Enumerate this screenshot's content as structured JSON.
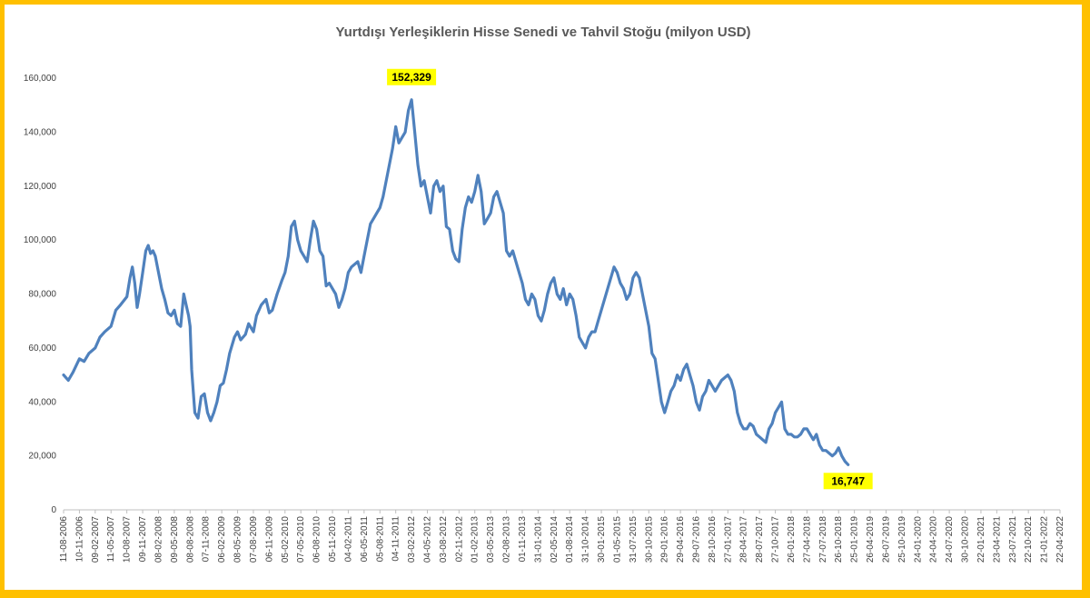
{
  "chart_data": {
    "type": "line",
    "title": "Yurtdışı Yerleşiklerin Hisse Senedi ve Tahvil Stoğu (milyon USD)",
    "xlabel": "",
    "ylabel": "",
    "ylim": [
      0,
      160000
    ],
    "y_ticks": [
      0,
      20000,
      40000,
      60000,
      80000,
      100000,
      120000,
      140000,
      160000
    ],
    "y_tick_labels": [
      "0",
      "20,000",
      "40,000",
      "60,000",
      "80,000",
      "100,000",
      "120,000",
      "140,000",
      "160,000"
    ],
    "grid": false,
    "legend": "none",
    "line_color": "#4f81bd",
    "x_tick_labels": [
      "11-08-2006",
      "10-11-2006",
      "09-02-2007",
      "11-05-2007",
      "10-08-2007",
      "09-11-2007",
      "08-02-2008",
      "09-05-2008",
      "08-08-2008",
      "07-11-2008",
      "06-02-2009",
      "08-05-2009",
      "07-08-2009",
      "06-11-2009",
      "05-02-2010",
      "07-05-2010",
      "06-08-2010",
      "05-11-2010",
      "04-02-2011",
      "06-05-2011",
      "05-08-2011",
      "04-11-2011",
      "03-02-2012",
      "04-05-2012",
      "03-08-2012",
      "02-11-2012",
      "01-02-2013",
      "03-05-2013",
      "02-08-2013",
      "01-11-2013",
      "31-01-2014",
      "02-05-2014",
      "01-08-2014",
      "31-10-2014",
      "30-01-2015",
      "01-05-2015",
      "31-07-2015",
      "30-10-2015",
      "29-01-2016",
      "29-04-2016",
      "29-07-2016",
      "28-10-2016",
      "27-01-2017",
      "28-04-2017",
      "28-07-2017",
      "27-10-2017",
      "26-01-2018",
      "27-04-2018",
      "27-07-2018",
      "26-10-2018",
      "25-01-2019",
      "26-04-2019",
      "26-07-2019",
      "25-10-2019",
      "24-01-2020",
      "24-04-2020",
      "24-07-2020",
      "30-10-2020",
      "22-01-2021",
      "23-04-2021",
      "23-07-2021",
      "22-10-2021",
      "21-01-2022",
      "22-04-2022"
    ],
    "series": [
      {
        "points": [
          [
            0,
            50000
          ],
          [
            0.3,
            48000
          ],
          [
            0.6,
            51000
          ],
          [
            1.0,
            56000
          ],
          [
            1.3,
            55000
          ],
          [
            1.6,
            58000
          ],
          [
            2.0,
            60000
          ],
          [
            2.3,
            64000
          ],
          [
            2.6,
            66000
          ],
          [
            3.0,
            68000
          ],
          [
            3.3,
            74000
          ],
          [
            3.6,
            76000
          ],
          [
            4.0,
            79000
          ],
          [
            4.2,
            86000
          ],
          [
            4.35,
            90000
          ],
          [
            4.5,
            84000
          ],
          [
            4.65,
            75000
          ],
          [
            4.8,
            80000
          ],
          [
            5.0,
            88000
          ],
          [
            5.2,
            96000
          ],
          [
            5.35,
            98000
          ],
          [
            5.5,
            95000
          ],
          [
            5.65,
            96000
          ],
          [
            5.8,
            94000
          ],
          [
            6.0,
            88000
          ],
          [
            6.2,
            82000
          ],
          [
            6.4,
            78000
          ],
          [
            6.6,
            73000
          ],
          [
            6.8,
            72000
          ],
          [
            7.0,
            74000
          ],
          [
            7.2,
            69000
          ],
          [
            7.4,
            68000
          ],
          [
            7.6,
            80000
          ],
          [
            7.75,
            76000
          ],
          [
            7.9,
            72000
          ],
          [
            8.0,
            68000
          ],
          [
            8.1,
            52000
          ],
          [
            8.3,
            36000
          ],
          [
            8.5,
            34000
          ],
          [
            8.7,
            42000
          ],
          [
            8.9,
            43000
          ],
          [
            9.1,
            36000
          ],
          [
            9.3,
            33000
          ],
          [
            9.5,
            36000
          ],
          [
            9.7,
            40000
          ],
          [
            9.9,
            46000
          ],
          [
            10.1,
            47000
          ],
          [
            10.3,
            52000
          ],
          [
            10.5,
            58000
          ],
          [
            10.8,
            64000
          ],
          [
            11.0,
            66000
          ],
          [
            11.2,
            63000
          ],
          [
            11.5,
            65000
          ],
          [
            11.7,
            69000
          ],
          [
            12.0,
            66000
          ],
          [
            12.2,
            72000
          ],
          [
            12.5,
            76000
          ],
          [
            12.8,
            78000
          ],
          [
            13.0,
            73000
          ],
          [
            13.2,
            74000
          ],
          [
            13.5,
            80000
          ],
          [
            13.8,
            85000
          ],
          [
            14.0,
            88000
          ],
          [
            14.2,
            94000
          ],
          [
            14.4,
            105000
          ],
          [
            14.6,
            107000
          ],
          [
            14.8,
            100000
          ],
          [
            15.0,
            96000
          ],
          [
            15.2,
            94000
          ],
          [
            15.4,
            92000
          ],
          [
            15.6,
            100000
          ],
          [
            15.8,
            107000
          ],
          [
            16.0,
            104000
          ],
          [
            16.2,
            96000
          ],
          [
            16.4,
            94000
          ],
          [
            16.6,
            83000
          ],
          [
            16.8,
            84000
          ],
          [
            17.0,
            82000
          ],
          [
            17.2,
            80000
          ],
          [
            17.4,
            75000
          ],
          [
            17.6,
            78000
          ],
          [
            17.8,
            82000
          ],
          [
            18.0,
            88000
          ],
          [
            18.2,
            90000
          ],
          [
            18.4,
            91000
          ],
          [
            18.6,
            92000
          ],
          [
            18.8,
            88000
          ],
          [
            19.0,
            94000
          ],
          [
            19.2,
            100000
          ],
          [
            19.4,
            106000
          ],
          [
            19.6,
            108000
          ],
          [
            19.8,
            110000
          ],
          [
            20.0,
            112000
          ],
          [
            20.2,
            116000
          ],
          [
            20.4,
            122000
          ],
          [
            20.6,
            128000
          ],
          [
            20.8,
            134000
          ],
          [
            21.0,
            142000
          ],
          [
            21.2,
            136000
          ],
          [
            21.4,
            138000
          ],
          [
            21.6,
            140000
          ],
          [
            21.8,
            148000
          ],
          [
            22.0,
            152000
          ],
          [
            22.2,
            140000
          ],
          [
            22.4,
            128000
          ],
          [
            22.6,
            120000
          ],
          [
            22.8,
            122000
          ],
          [
            23.0,
            116000
          ],
          [
            23.2,
            110000
          ],
          [
            23.4,
            120000
          ],
          [
            23.6,
            122000
          ],
          [
            23.8,
            118000
          ],
          [
            24.0,
            120000
          ],
          [
            24.2,
            105000
          ],
          [
            24.4,
            104000
          ],
          [
            24.6,
            96000
          ],
          [
            24.8,
            93000
          ],
          [
            25.0,
            92000
          ],
          [
            25.2,
            104000
          ],
          [
            25.4,
            112000
          ],
          [
            25.6,
            116000
          ],
          [
            25.8,
            114000
          ],
          [
            26.0,
            118000
          ],
          [
            26.2,
            124000
          ],
          [
            26.4,
            118000
          ],
          [
            26.6,
            106000
          ],
          [
            26.8,
            108000
          ],
          [
            27.0,
            110000
          ],
          [
            27.2,
            116000
          ],
          [
            27.4,
            118000
          ],
          [
            27.6,
            114000
          ],
          [
            27.8,
            110000
          ],
          [
            28.0,
            96000
          ],
          [
            28.2,
            94000
          ],
          [
            28.4,
            96000
          ],
          [
            28.6,
            92000
          ],
          [
            28.8,
            88000
          ],
          [
            29.0,
            84000
          ],
          [
            29.2,
            78000
          ],
          [
            29.4,
            76000
          ],
          [
            29.6,
            80000
          ],
          [
            29.8,
            78000
          ],
          [
            30.0,
            72000
          ],
          [
            30.2,
            70000
          ],
          [
            30.4,
            74000
          ],
          [
            30.6,
            80000
          ],
          [
            30.8,
            84000
          ],
          [
            31.0,
            86000
          ],
          [
            31.2,
            80000
          ],
          [
            31.4,
            78000
          ],
          [
            31.6,
            82000
          ],
          [
            31.8,
            76000
          ],
          [
            32.0,
            80000
          ],
          [
            32.2,
            78000
          ],
          [
            32.4,
            72000
          ],
          [
            32.6,
            64000
          ],
          [
            32.8,
            62000
          ],
          [
            33.0,
            60000
          ],
          [
            33.2,
            64000
          ],
          [
            33.4,
            66000
          ],
          [
            33.6,
            66000
          ],
          [
            33.8,
            70000
          ],
          [
            34.0,
            74000
          ],
          [
            34.2,
            78000
          ],
          [
            34.4,
            82000
          ],
          [
            34.6,
            86000
          ],
          [
            34.8,
            90000
          ],
          [
            35.0,
            88000
          ],
          [
            35.2,
            84000
          ],
          [
            35.4,
            82000
          ],
          [
            35.6,
            78000
          ],
          [
            35.8,
            80000
          ],
          [
            36.0,
            86000
          ],
          [
            36.2,
            88000
          ],
          [
            36.4,
            86000
          ],
          [
            36.6,
            80000
          ],
          [
            36.8,
            74000
          ],
          [
            37.0,
            68000
          ],
          [
            37.2,
            58000
          ],
          [
            37.4,
            56000
          ],
          [
            37.6,
            48000
          ],
          [
            37.8,
            40000
          ],
          [
            38.0,
            36000
          ],
          [
            38.2,
            40000
          ],
          [
            38.4,
            44000
          ],
          [
            38.6,
            46000
          ],
          [
            38.8,
            50000
          ],
          [
            39.0,
            48000
          ],
          [
            39.2,
            52000
          ],
          [
            39.4,
            54000
          ],
          [
            39.6,
            50000
          ],
          [
            39.8,
            46000
          ],
          [
            40.0,
            40000
          ],
          [
            40.2,
            37000
          ],
          [
            40.4,
            42000
          ],
          [
            40.6,
            44000
          ],
          [
            40.8,
            48000
          ],
          [
            41.0,
            46000
          ],
          [
            41.2,
            44000
          ],
          [
            41.4,
            46000
          ],
          [
            41.6,
            48000
          ],
          [
            41.8,
            49000
          ],
          [
            42.0,
            50000
          ],
          [
            42.2,
            48000
          ],
          [
            42.4,
            44000
          ],
          [
            42.6,
            36000
          ],
          [
            42.8,
            32000
          ],
          [
            43.0,
            30000
          ],
          [
            43.2,
            30000
          ],
          [
            43.4,
            32000
          ],
          [
            43.6,
            31000
          ],
          [
            43.8,
            28000
          ],
          [
            44.0,
            27000
          ],
          [
            44.2,
            26000
          ],
          [
            44.4,
            25000
          ],
          [
            44.6,
            30000
          ],
          [
            44.8,
            32000
          ],
          [
            45.0,
            36000
          ],
          [
            45.2,
            38000
          ],
          [
            45.4,
            40000
          ],
          [
            45.6,
            30000
          ],
          [
            45.8,
            28000
          ],
          [
            46.0,
            28000
          ],
          [
            46.2,
            27000
          ],
          [
            46.4,
            27000
          ],
          [
            46.6,
            28000
          ],
          [
            46.8,
            30000
          ],
          [
            47.0,
            30000
          ],
          [
            47.2,
            28000
          ],
          [
            47.4,
            26000
          ],
          [
            47.6,
            28000
          ],
          [
            47.8,
            24000
          ],
          [
            48.0,
            22000
          ],
          [
            48.2,
            22000
          ],
          [
            48.4,
            21000
          ],
          [
            48.6,
            20000
          ],
          [
            48.8,
            21000
          ],
          [
            49.0,
            23000
          ],
          [
            49.2,
            20000
          ],
          [
            49.4,
            18000
          ],
          [
            49.6,
            16747
          ]
        ]
      }
    ],
    "annotations": [
      {
        "text": "152,329",
        "x": 22.0,
        "y": 152329
      },
      {
        "text": "16,747",
        "x": 49.6,
        "y": 16747
      }
    ]
  }
}
